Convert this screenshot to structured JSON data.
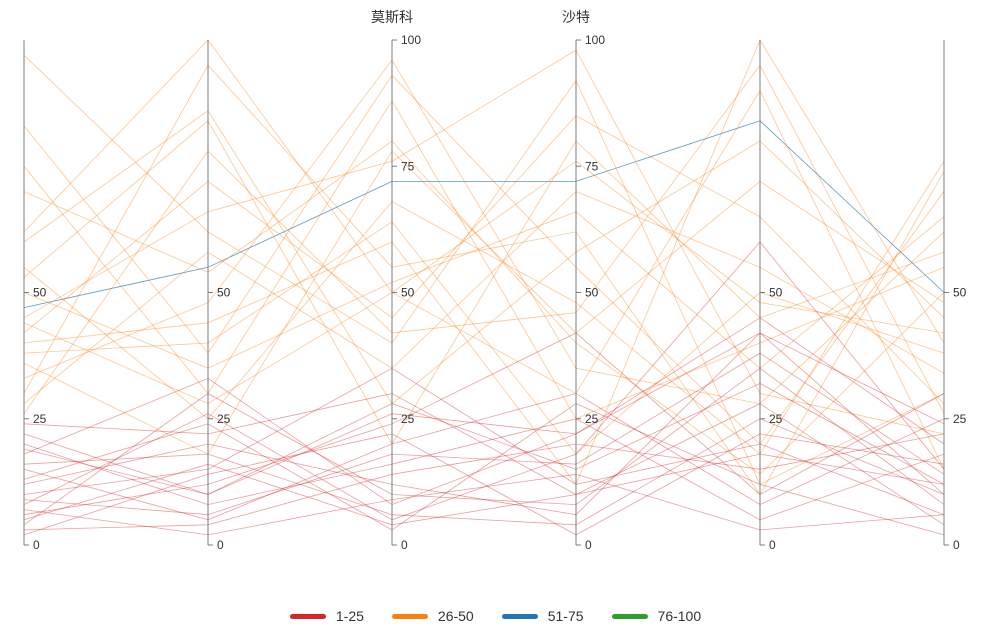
{
  "chart_data": {
    "type": "parallel-coordinates",
    "axes": [
      {
        "name": "",
        "range": [
          0,
          100
        ],
        "ticks": [
          0,
          25,
          50
        ]
      },
      {
        "name": "",
        "range": [
          0,
          100
        ],
        "ticks": [
          0,
          25,
          50
        ]
      },
      {
        "name": "莫斯科",
        "range": [
          0,
          100
        ],
        "ticks": [
          0,
          25,
          50,
          75,
          100
        ]
      },
      {
        "name": "沙特",
        "range": [
          0,
          100
        ],
        "ticks": [
          0,
          25,
          50,
          75,
          100
        ]
      },
      {
        "name": "",
        "range": [
          0,
          100
        ],
        "ticks": [
          0,
          25,
          50
        ]
      },
      {
        "name": "",
        "range": [
          0,
          100
        ],
        "ticks": [
          0,
          25,
          50
        ]
      }
    ],
    "legend": [
      {
        "label": "1-25",
        "color": "#d62728"
      },
      {
        "label": "26-50",
        "color": "#ff7f0e"
      },
      {
        "label": "51-75",
        "color": "#1f77b4"
      },
      {
        "label": "76-100",
        "color": "#2ca02c"
      }
    ],
    "grid": false,
    "legend_position": "bottom-center",
    "series": [
      {
        "group": "51-75",
        "values": [
          47,
          55,
          72,
          72,
          84,
          50
        ]
      },
      {
        "group": "26-50",
        "values": [
          97,
          62,
          40,
          92,
          12,
          30
        ]
      },
      {
        "group": "26-50",
        "values": [
          83,
          38,
          93,
          55,
          20,
          70
        ]
      },
      {
        "group": "26-50",
        "values": [
          62,
          100,
          50,
          30,
          90,
          15
        ]
      },
      {
        "group": "26-50",
        "values": [
          53,
          84,
          20,
          80,
          45,
          58
        ]
      },
      {
        "group": "26-50",
        "values": [
          45,
          66,
          76,
          98,
          30,
          22
        ]
      },
      {
        "group": "26-50",
        "values": [
          40,
          44,
          60,
          12,
          100,
          40
        ]
      },
      {
        "group": "26-50",
        "values": [
          36,
          18,
          78,
          42,
          72,
          48
        ]
      },
      {
        "group": "26-50",
        "values": [
          30,
          95,
          55,
          62,
          10,
          74
        ]
      },
      {
        "group": "26-50",
        "values": [
          28,
          58,
          35,
          70,
          55,
          34
        ]
      },
      {
        "group": "26-50",
        "values": [
          75,
          30,
          88,
          25,
          40,
          55
        ]
      },
      {
        "group": "26-50",
        "values": [
          55,
          25,
          68,
          48,
          18,
          76
        ]
      },
      {
        "group": "26-50",
        "values": [
          42,
          72,
          45,
          85,
          65,
          28
        ]
      },
      {
        "group": "26-50",
        "values": [
          33,
          48,
          96,
          35,
          28,
          62
        ]
      },
      {
        "group": "26-50",
        "values": [
          60,
          86,
          28,
          58,
          80,
          45
        ]
      },
      {
        "group": "26-50",
        "values": [
          38,
          40,
          64,
          18,
          50,
          38
        ]
      },
      {
        "group": "26-50",
        "values": [
          50,
          35,
          52,
          66,
          35,
          65
        ]
      },
      {
        "group": "26-50",
        "values": [
          26,
          78,
          42,
          46,
          95,
          26
        ]
      },
      {
        "group": "26-50",
        "values": [
          70,
          54,
          80,
          40,
          14,
          50
        ]
      },
      {
        "group": "26-50",
        "values": [
          44,
          28,
          50,
          76,
          48,
          42
        ]
      },
      {
        "group": "1-25",
        "values": [
          22,
          10,
          28,
          15,
          32,
          12
        ]
      },
      {
        "group": "1-25",
        "values": [
          18,
          33,
          8,
          22,
          45,
          20
        ]
      },
      {
        "group": "1-25",
        "values": [
          15,
          5,
          20,
          30,
          8,
          25
        ]
      },
      {
        "group": "1-25",
        "values": [
          12,
          20,
          12,
          6,
          42,
          10
        ]
      },
      {
        "group": "1-25",
        "values": [
          10,
          15,
          35,
          12,
          20,
          6
        ]
      },
      {
        "group": "1-25",
        "values": [
          8,
          26,
          5,
          18,
          60,
          15
        ]
      },
      {
        "group": "1-25",
        "values": [
          6,
          12,
          24,
          42,
          10,
          30
        ]
      },
      {
        "group": "1-25",
        "values": [
          4,
          30,
          10,
          8,
          35,
          8
        ]
      },
      {
        "group": "1-25",
        "values": [
          20,
          8,
          16,
          25,
          5,
          18
        ]
      },
      {
        "group": "1-25",
        "values": [
          24,
          22,
          30,
          10,
          28,
          4
        ]
      },
      {
        "group": "1-25",
        "values": [
          3,
          4,
          14,
          20,
          15,
          22
        ]
      },
      {
        "group": "1-25",
        "values": [
          16,
          18,
          6,
          4,
          25,
          10
        ]
      },
      {
        "group": "1-25",
        "values": [
          9,
          6,
          18,
          16,
          38,
          14
        ]
      },
      {
        "group": "1-25",
        "values": [
          13,
          24,
          3,
          28,
          12,
          2
        ]
      },
      {
        "group": "1-25",
        "values": [
          2,
          14,
          22,
          2,
          22,
          16
        ]
      },
      {
        "group": "1-25",
        "values": [
          7,
          2,
          9,
          14,
          3,
          6
        ]
      },
      {
        "group": "1-25",
        "values": [
          19,
          10,
          26,
          22,
          42,
          24
        ]
      },
      {
        "group": "1-25",
        "values": [
          5,
          16,
          4,
          10,
          18,
          12
        ]
      }
    ]
  }
}
